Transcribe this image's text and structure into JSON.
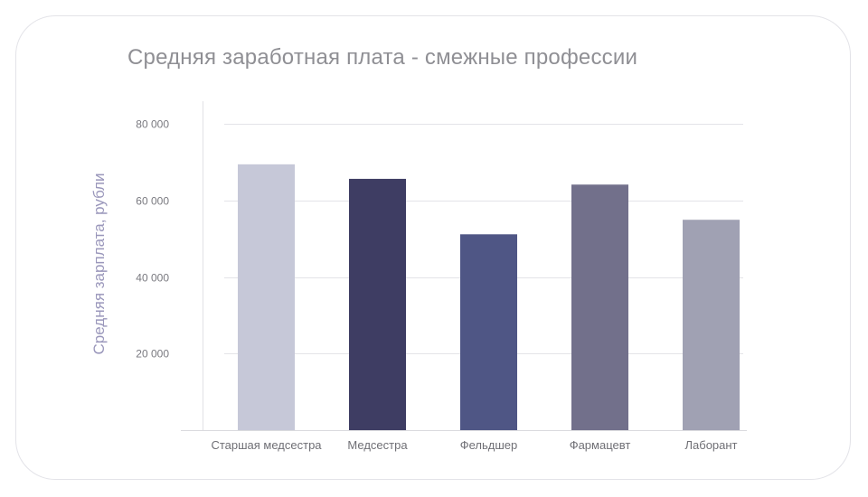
{
  "chart_data": {
    "type": "bar",
    "title": "Средняя заработная плата - смежные профессии",
    "ylabel": "Средняя зарплата, рубли",
    "xlabel": "",
    "categories": [
      "Старшая медсестра",
      "Медсестра",
      "Фельдшер",
      "Фармацевт",
      "Лаборант"
    ],
    "values": [
      69500,
      65700,
      51200,
      64200,
      55000
    ],
    "colors": [
      "#c6c8d8",
      "#3e3d63",
      "#4f5685",
      "#72708b",
      "#a0a1b3"
    ],
    "ylim": [
      0,
      86000
    ],
    "yticks": [
      20000,
      40000,
      60000,
      80000
    ],
    "ytick_labels": [
      "20 000",
      "40 000",
      "60 000",
      "80 000"
    ],
    "grid": true
  }
}
